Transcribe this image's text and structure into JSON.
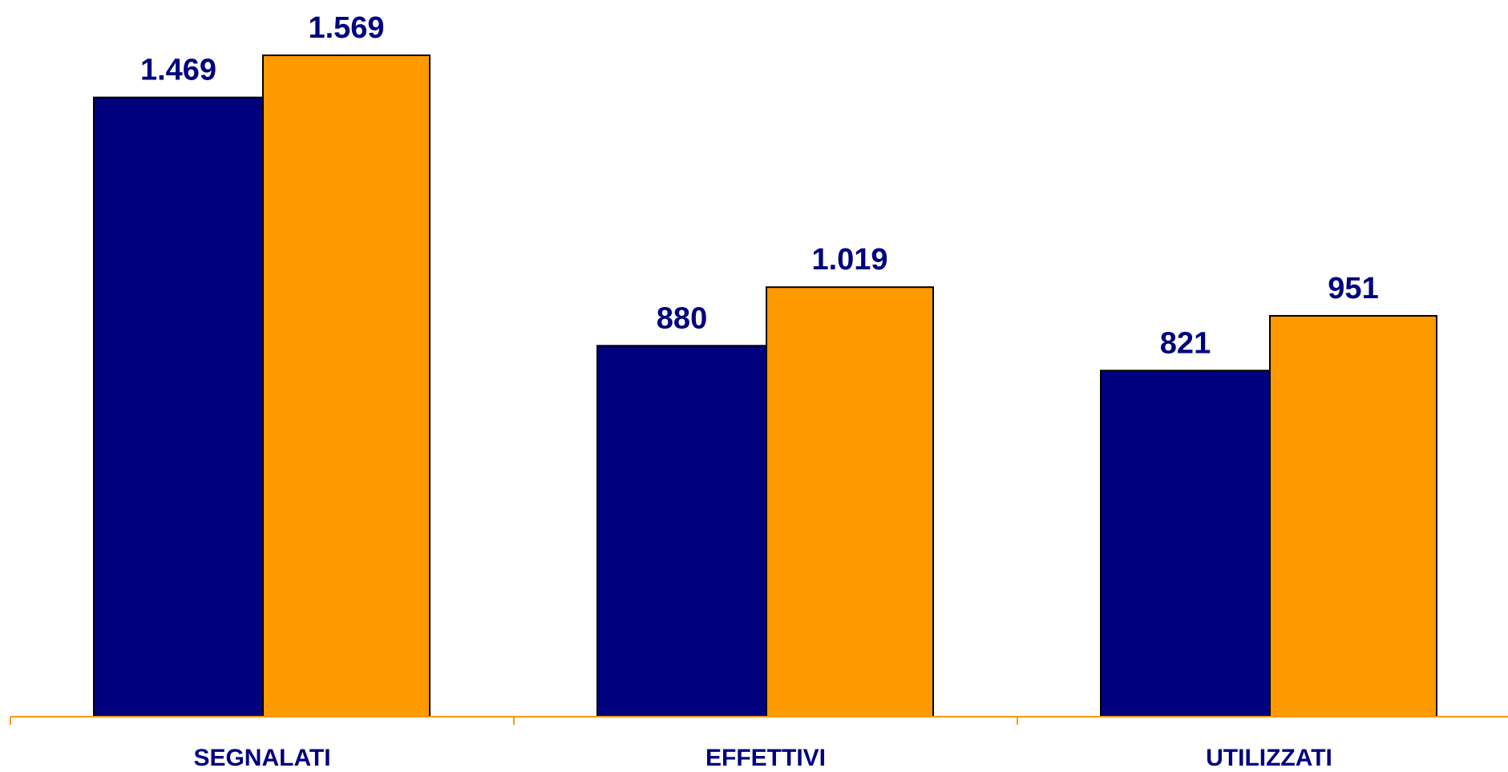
{
  "chart_data": {
    "type": "bar",
    "categories": [
      "SEGNALATI",
      "EFFETTIVI",
      "UTILIZZATI"
    ],
    "series": [
      {
        "color": "#00007F",
        "values": [
          1469,
          880,
          821
        ],
        "labels": [
          "1.469",
          "880",
          "821"
        ]
      },
      {
        "color": "#FF9900",
        "values": [
          1569,
          1019,
          951
        ],
        "labels": [
          "1.569",
          "1.019",
          "951"
        ]
      }
    ],
    "ylim": [
      0,
      1569
    ],
    "grid": false,
    "legend": "none",
    "colors": {
      "axis": "#FF9900",
      "label_text": "#00007F"
    }
  }
}
